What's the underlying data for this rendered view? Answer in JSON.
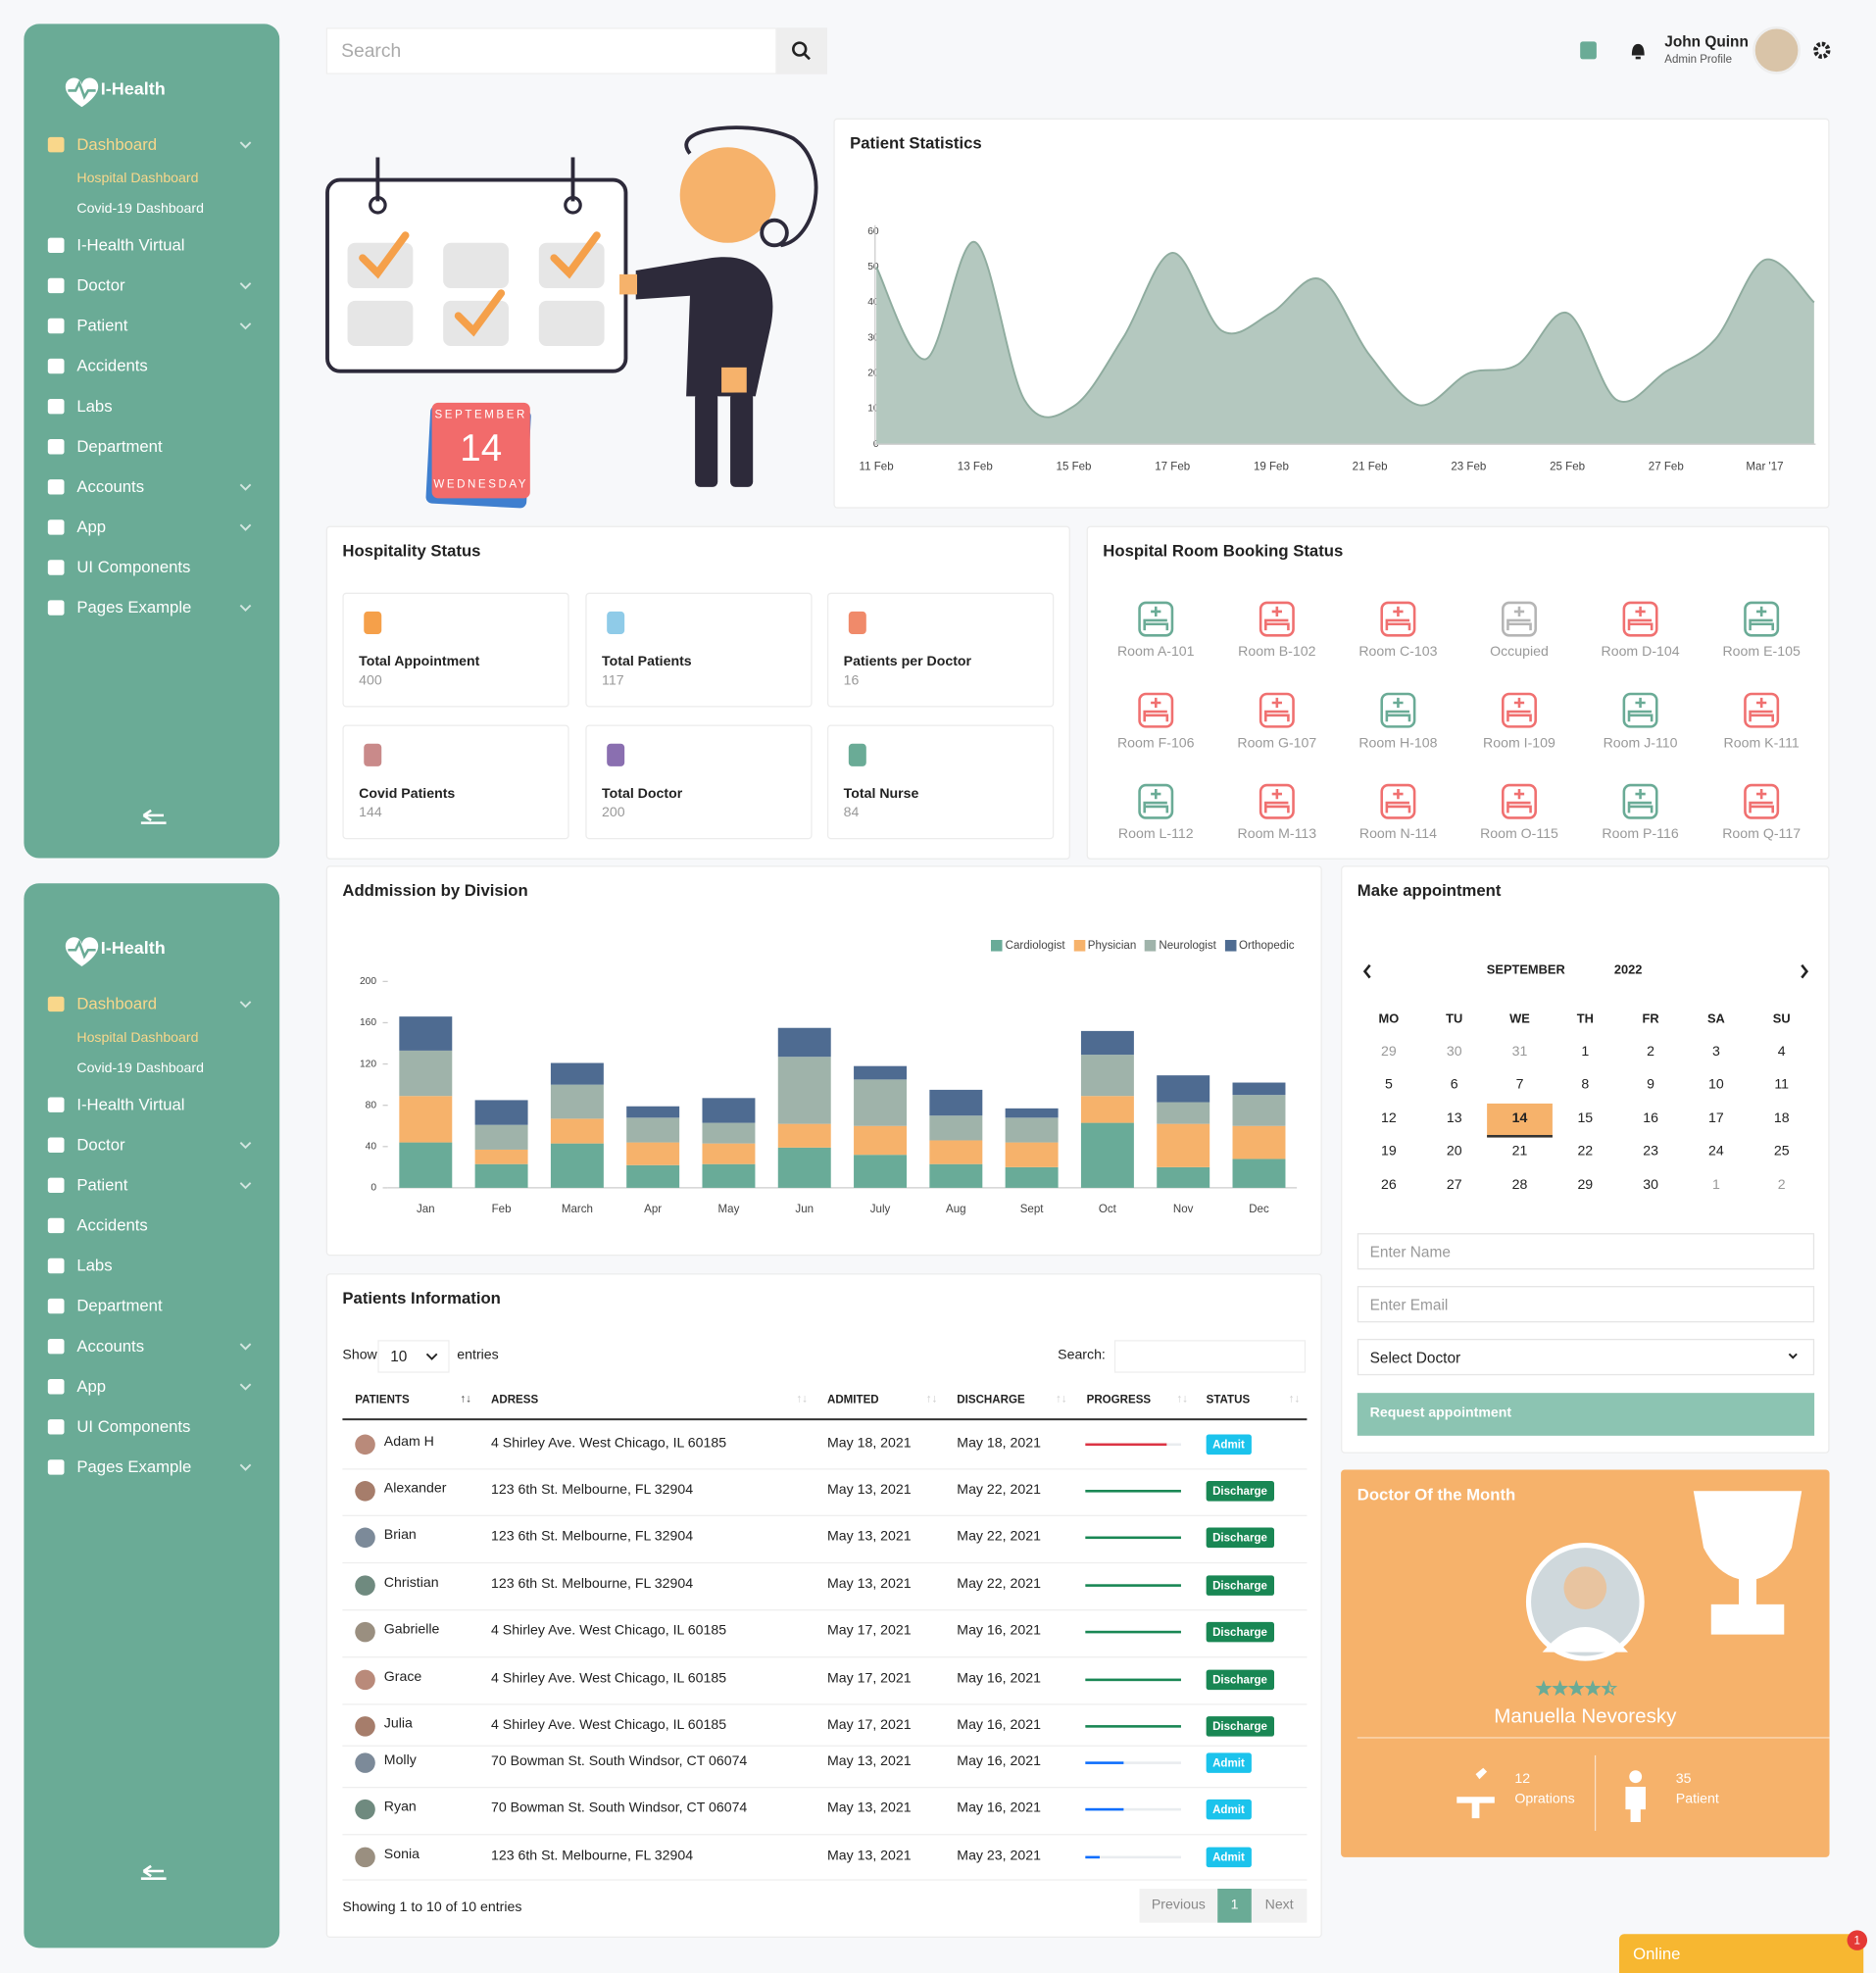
{
  "sidebar": {
    "brand": "I-Health",
    "menu": [
      {
        "label": "Dashboard",
        "submenu": true,
        "active": true,
        "children": [
          "Hospital Dashboard",
          "Covid-19 Dashboard"
        ]
      },
      {
        "label": "I-Health Virtual"
      },
      {
        "label": "Doctor",
        "submenu": true
      },
      {
        "label": "Patient",
        "submenu": true
      },
      {
        "label": "Accidents"
      },
      {
        "label": "Labs"
      },
      {
        "label": "Department"
      },
      {
        "label": "Accounts",
        "submenu": true
      },
      {
        "label": "App",
        "submenu": true
      },
      {
        "label": "UI Components"
      },
      {
        "label": "Pages Example",
        "submenu": true
      }
    ]
  },
  "header": {
    "search_placeholder": "Search",
    "user_name": "John Quinn",
    "user_role": "Admin Profile"
  },
  "banner": {
    "month": "SEPTEMBER",
    "day": "14",
    "weekday": "WEDNESDAY"
  },
  "patient_statistics": {
    "type": "area",
    "title": "Patient Statistics",
    "categories": [
      "11 Feb",
      null,
      "13 Feb",
      null,
      "15 Feb",
      null,
      "17 Feb",
      null,
      "19 Feb",
      null,
      "21 Feb",
      null,
      "23 Feb",
      null,
      "25 Feb",
      null,
      "27 Feb",
      null,
      "Mar '17",
      null
    ],
    "values": [
      50,
      24,
      57,
      12.5,
      10.7,
      30,
      54,
      32,
      37,
      46.5,
      25,
      11,
      20,
      22.5,
      37,
      12.5,
      20.5,
      29.6,
      52,
      40
    ],
    "color": "#b4c8bf",
    "line_color": "#8fac9f",
    "ylim": [
      0,
      60
    ],
    "yticks": [
      0,
      10,
      20,
      30,
      40,
      50,
      60
    ]
  },
  "hospitality_status": {
    "title": "Hospitality Status",
    "cards": [
      {
        "label": "Total Appointment",
        "value": 400,
        "color": "#f5a04a"
      },
      {
        "label": "Total Patients",
        "value": 117,
        "color": "#8fcbe8"
      },
      {
        "label": "Patients per Doctor",
        "value": 16,
        "color": "#f08a6a"
      },
      {
        "label": "Covid Patients",
        "value": 144,
        "color": "#c98a8a"
      },
      {
        "label": "Total Doctor",
        "value": 200,
        "color": "#8a6fb0"
      },
      {
        "label": "Total Nurse",
        "value": 84,
        "color": "#6aab96"
      }
    ]
  },
  "room_booking": {
    "title": "Hospital Room Booking Status",
    "rooms": [
      {
        "label": "Room A-101",
        "color": "#6aab96"
      },
      {
        "label": "Room B-102",
        "color": "#f07070"
      },
      {
        "label": "Room C-103",
        "color": "#f07070"
      },
      {
        "label": "Occupied",
        "color": "#b5b5b5"
      },
      {
        "label": "Room D-104",
        "color": "#f07070"
      },
      {
        "label": "Room E-105",
        "color": "#6aab96"
      },
      {
        "label": "Room F-106",
        "color": "#f07070"
      },
      {
        "label": "Room G-107",
        "color": "#f07070"
      },
      {
        "label": "Room H-108",
        "color": "#6aab96"
      },
      {
        "label": "Room I-109",
        "color": "#f07070"
      },
      {
        "label": "Room J-110",
        "color": "#6aab96"
      },
      {
        "label": "Room K-111",
        "color": "#f07070"
      },
      {
        "label": "Room L-112",
        "color": "#6aab96"
      },
      {
        "label": "Room M-113",
        "color": "#f07070"
      },
      {
        "label": "Room N-114",
        "color": "#f07070"
      },
      {
        "label": "Room O-115",
        "color": "#f07070"
      },
      {
        "label": "Room P-116",
        "color": "#6aab96"
      },
      {
        "label": "Room Q-117",
        "color": "#f07070"
      }
    ]
  },
  "admission": {
    "type": "stacked_bar",
    "title": "Addmission by Division",
    "categories": [
      "Jan",
      "Feb",
      "March",
      "Apr",
      "May",
      "Jun",
      "July",
      "Aug",
      "Sept",
      "Oct",
      "Nov",
      "Dec"
    ],
    "series": [
      {
        "name": "Cardiologist",
        "color": "#69ab98",
        "values": [
          44,
          23,
          43,
          22,
          23,
          39,
          32,
          23,
          20,
          63,
          20,
          28
        ]
      },
      {
        "name": "Physician",
        "color": "#f6b26b",
        "values": [
          45,
          14,
          24,
          22,
          20,
          23,
          28,
          23,
          24,
          26,
          42,
          32
        ]
      },
      {
        "name": "Neurologist",
        "color": "#9fb3aa",
        "values": [
          44,
          24,
          33,
          24,
          20,
          65,
          45,
          24,
          24,
          40,
          21,
          30
        ]
      },
      {
        "name": "Orthopedic",
        "color": "#4e6b91",
        "values": [
          33,
          24,
          21,
          11,
          24,
          28,
          13,
          25,
          9,
          23,
          26,
          12
        ]
      }
    ],
    "ylim": [
      0,
      200
    ],
    "yticks": [
      0,
      40,
      80,
      120,
      160,
      200
    ],
    "legend": "top-right"
  },
  "appointment": {
    "title": "Make appointment",
    "month": "SEPTEMBER",
    "year": "2022",
    "weekdays": [
      "MO",
      "TU",
      "WE",
      "TH",
      "FR",
      "SA",
      "SU"
    ],
    "days": [
      {
        "d": 29,
        "muted": true
      },
      {
        "d": 30,
        "muted": true
      },
      {
        "d": 31,
        "muted": true
      },
      {
        "d": 1
      },
      {
        "d": 2
      },
      {
        "d": 3
      },
      {
        "d": 4
      },
      {
        "d": 5
      },
      {
        "d": 6
      },
      {
        "d": 7
      },
      {
        "d": 8
      },
      {
        "d": 9
      },
      {
        "d": 10
      },
      {
        "d": 11
      },
      {
        "d": 12
      },
      {
        "d": 13
      },
      {
        "d": 14,
        "selected": true
      },
      {
        "d": 15
      },
      {
        "d": 16
      },
      {
        "d": 17
      },
      {
        "d": 18
      },
      {
        "d": 19
      },
      {
        "d": 20
      },
      {
        "d": 21
      },
      {
        "d": 22
      },
      {
        "d": 23
      },
      {
        "d": 24
      },
      {
        "d": 25
      },
      {
        "d": 26
      },
      {
        "d": 27
      },
      {
        "d": 28
      },
      {
        "d": 29
      },
      {
        "d": 30
      },
      {
        "d": 1,
        "muted": true
      },
      {
        "d": 2,
        "muted": true
      }
    ],
    "fields": [
      "Enter Name",
      "Enter Email",
      "Select Doctor"
    ],
    "button": "Request appointment"
  },
  "doctor_of_month": {
    "title": "Doctor Of the Month",
    "name": "Manuella Nevoresky",
    "rating": 4.5,
    "stats": [
      {
        "value": 12,
        "label": "Oprations"
      },
      {
        "value": 35,
        "label": "Patient"
      }
    ]
  },
  "patients": {
    "title": "Patients Information",
    "show_label": "Show",
    "page_size": 10,
    "entries_label": "entries",
    "search_label": "Search:",
    "columns": [
      "PATIENTS",
      "ADRESS",
      "ADMITED",
      "DISCHARGE",
      "PROGRESS",
      "STATUS"
    ],
    "rows": [
      {
        "name": "Adam H",
        "address": "4 Shirley Ave. West Chicago, IL 60185",
        "admitted": "May 18, 2021",
        "discharge": "May 18, 2021",
        "progress": 85,
        "progress_color": "#dc3545",
        "status": "Admit",
        "status_color": "#1bc3ec"
      },
      {
        "name": "Alexander",
        "address": "123 6th St. Melbourne, FL 32904",
        "admitted": "May 13, 2021",
        "discharge": "May 22, 2021",
        "progress": 100,
        "progress_color": "#198754",
        "status": "Discharge",
        "status_color": "#198754"
      },
      {
        "name": "Brian",
        "address": "123 6th St. Melbourne, FL 32904",
        "admitted": "May 13, 2021",
        "discharge": "May 22, 2021",
        "progress": 100,
        "progress_color": "#198754",
        "status": "Discharge",
        "status_color": "#198754"
      },
      {
        "name": "Christian",
        "address": "123 6th St. Melbourne, FL 32904",
        "admitted": "May 13, 2021",
        "discharge": "May 22, 2021",
        "progress": 100,
        "progress_color": "#198754",
        "status": "Discharge",
        "status_color": "#198754"
      },
      {
        "name": "Gabrielle",
        "address": "4 Shirley Ave. West Chicago, IL 60185",
        "admitted": "May 17, 2021",
        "discharge": "May 16, 2021",
        "progress": 100,
        "progress_color": "#198754",
        "status": "Discharge",
        "status_color": "#198754"
      },
      {
        "name": "Grace",
        "address": "4 Shirley Ave. West Chicago, IL 60185",
        "admitted": "May 17, 2021",
        "discharge": "May 16, 2021",
        "progress": 100,
        "progress_color": "#198754",
        "status": "Discharge",
        "status_color": "#198754"
      },
      {
        "name": "Julia",
        "address": "4 Shirley Ave. West Chicago, IL 60185",
        "admitted": "May 17, 2021",
        "discharge": "May 16, 2021",
        "progress": 100,
        "progress_color": "#198754",
        "status": "Discharge",
        "status_color": "#198754"
      },
      {
        "name": "Molly",
        "address": "70 Bowman St. South Windsor, CT 06074",
        "admitted": "May 13, 2021",
        "discharge": "May 16, 2021",
        "progress": 40,
        "progress_color": "#0d6efd",
        "status": "Admit",
        "status_color": "#1bc3ec"
      },
      {
        "name": "Ryan",
        "address": "70 Bowman St. South Windsor, CT 06074",
        "admitted": "May 13, 2021",
        "discharge": "May 16, 2021",
        "progress": 40,
        "progress_color": "#0d6efd",
        "status": "Admit",
        "status_color": "#1bc3ec"
      },
      {
        "name": "Sonia",
        "address": "123 6th St. Melbourne, FL 32904",
        "admitted": "May 13, 2021",
        "discharge": "May 23, 2021",
        "progress": 15,
        "progress_color": "#0d6efd",
        "status": "Admit",
        "status_color": "#1bc3ec"
      }
    ],
    "footer": "Showing 1 to 10 of 10 entries",
    "pagination": [
      "Previous",
      "1",
      "Next"
    ]
  },
  "chat": {
    "label": "Online",
    "badge": 1
  }
}
